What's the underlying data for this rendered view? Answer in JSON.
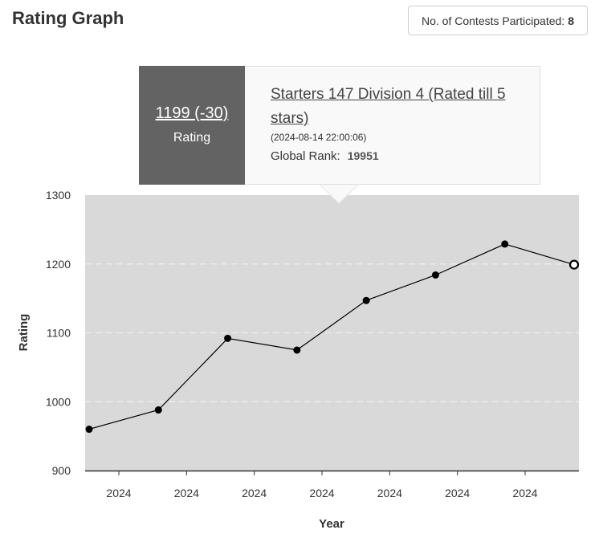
{
  "header": {
    "title": "Rating Graph",
    "contests_label": "No. of Contests Participated:",
    "contests_count": "8"
  },
  "tooltip": {
    "rating_change": "1199 (-30)",
    "rating_label": "Rating",
    "contest_name": "Starters 147 Division 4 (Rated till 5 stars)",
    "datetime": "(2024-08-14 22:00:06)",
    "rank_label": "Global Rank:",
    "rank_value": "19951"
  },
  "colors": {
    "plot_background": "#d9d9d9",
    "line": "#000000",
    "tooltip_dark": "#636363",
    "tooltip_light": "#f9f9f9"
  },
  "chart_data": {
    "type": "line",
    "xlabel": "Year",
    "ylabel": "Rating",
    "ylim": [
      900,
      1300
    ],
    "yticks": [
      900,
      1000,
      1100,
      1200,
      1300
    ],
    "xtick_labels": [
      "2024",
      "2024",
      "2024",
      "2024",
      "2024",
      "2024",
      "2024"
    ],
    "grid": true,
    "values": [
      960,
      988,
      1092,
      1075,
      1147,
      1184,
      1229,
      1199
    ],
    "highlighted_index": 7
  }
}
